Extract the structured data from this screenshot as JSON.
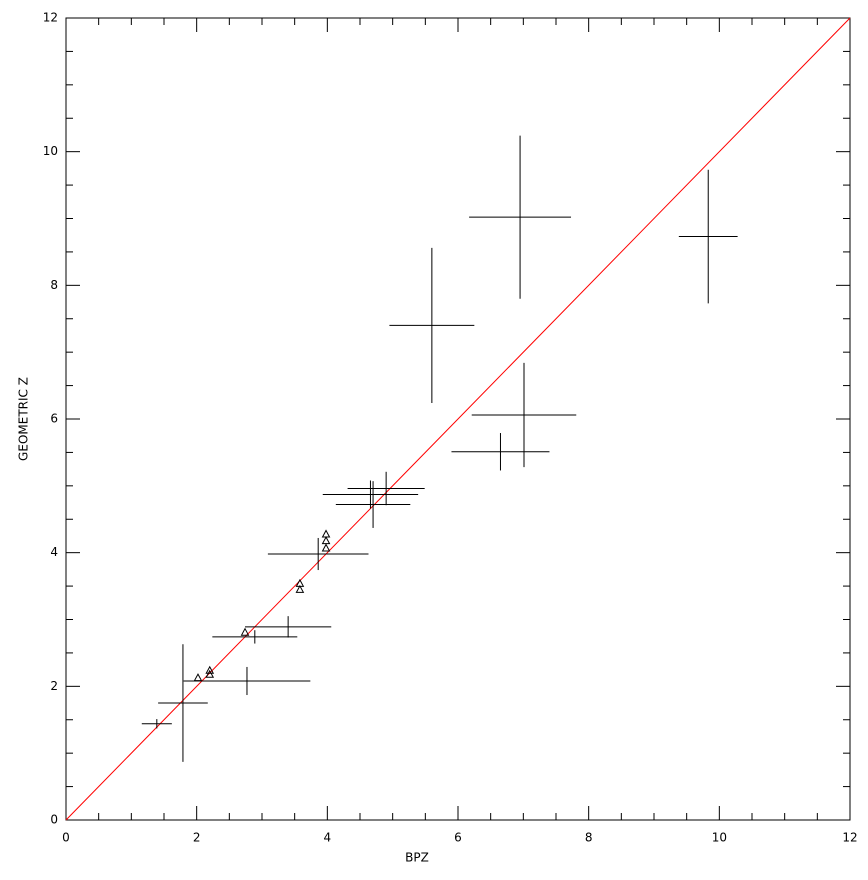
{
  "chart_data": {
    "type": "scatter",
    "x_label": "BPZ",
    "y_label": "GEOMETRIC Z",
    "xlim": [
      0,
      12
    ],
    "ylim": [
      0,
      12
    ],
    "xticks": [
      0,
      2,
      4,
      6,
      8,
      10,
      12
    ],
    "yticks": [
      0,
      2,
      4,
      6,
      8,
      10,
      12
    ],
    "minor_ticks_per_major": 4,
    "series": [
      {
        "marker": "cross",
        "color": "#000000",
        "x": [
          5.6,
          6.95,
          9.83,
          7.01,
          6.65,
          4.9,
          4.66,
          4.7,
          3.86,
          3.4,
          2.89,
          2.77,
          1.79,
          1.39
        ],
        "values": [
          7.4,
          9.02,
          8.73,
          6.06,
          5.51,
          4.96,
          4.87,
          4.72,
          3.98,
          2.89,
          2.74,
          2.08,
          1.75,
          1.44
        ],
        "xerr": [
          0.65,
          0.78,
          0.45,
          0.8,
          0.75,
          0.59,
          0.73,
          0.57,
          0.77,
          0.66,
          0.65,
          0.97,
          0.38,
          0.23
        ],
        "yerr": [
          1.16,
          1.22,
          1.0,
          0.78,
          0.28,
          0.25,
          0.21,
          0.35,
          0.24,
          0.16,
          0.1,
          0.21,
          0.88,
          0.07
        ]
      },
      {
        "marker": "triangle",
        "color": "#000000",
        "x": [
          2.74,
          2.2,
          2.2,
          2.02,
          3.58,
          3.58,
          3.98,
          3.98,
          3.98
        ],
        "values": [
          2.81,
          2.24,
          2.18,
          2.13,
          3.54,
          3.45,
          4.28,
          4.18,
          4.07
        ]
      }
    ],
    "reference_line": {
      "color": "#ff0000",
      "x": [
        0,
        12
      ],
      "values": [
        0,
        12
      ]
    }
  }
}
